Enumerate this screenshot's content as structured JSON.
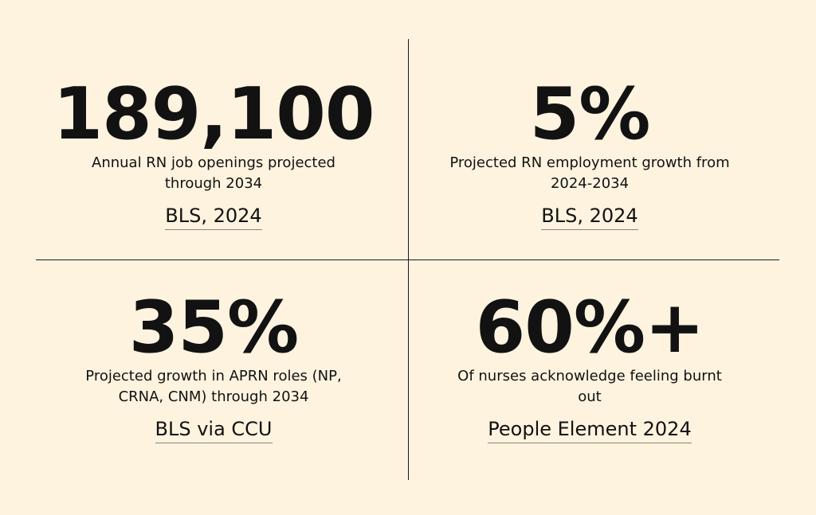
{
  "stats": [
    {
      "value": "189,100",
      "description": "Annual RN job openings projected through 2034",
      "source": "BLS, 2024"
    },
    {
      "value": "5%",
      "description": "Projected RN employment growth from 2024-2034",
      "source": "BLS, 2024"
    },
    {
      "value": "35%",
      "description": "Projected growth in APRN roles (NP, CRNA, CNM) through 2034",
      "source": "BLS via CCU"
    },
    {
      "value": "60%+",
      "description": "Of nurses acknowledge feeling burnt out",
      "source": "People Element 2024"
    }
  ],
  "colors": {
    "background": "#fdf3df",
    "text": "#121212",
    "divider": "#1a1a1a"
  }
}
